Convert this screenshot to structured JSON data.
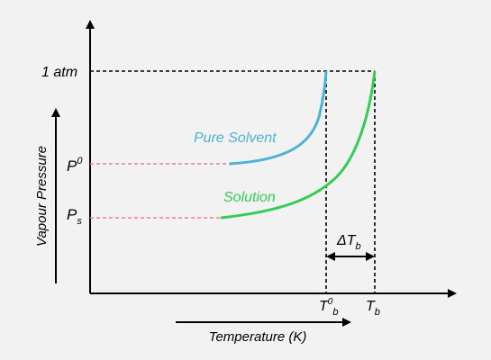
{
  "labels": {
    "one_atm": "1 atm",
    "p0_main": "P",
    "p0_sup": "0",
    "ps_main": "P",
    "ps_sub": "s",
    "pure_solvent": "Pure Solvent",
    "solution": "Solution",
    "delta_tb_main": "ΔT",
    "delta_tb_sub": "b",
    "t0b_main": "T",
    "t0b_sup": "0",
    "t0b_sub": "b",
    "tb_main": "T",
    "tb_sub": "b",
    "y_axis": "Vapour Pressure",
    "x_axis": "Temperature (K)"
  },
  "colors": {
    "pure_solvent": "#4ab3d6",
    "solution": "#33cc55",
    "pressure_guides": "#f08080",
    "axes": "#000000",
    "background": "#f2f2f2"
  }
}
